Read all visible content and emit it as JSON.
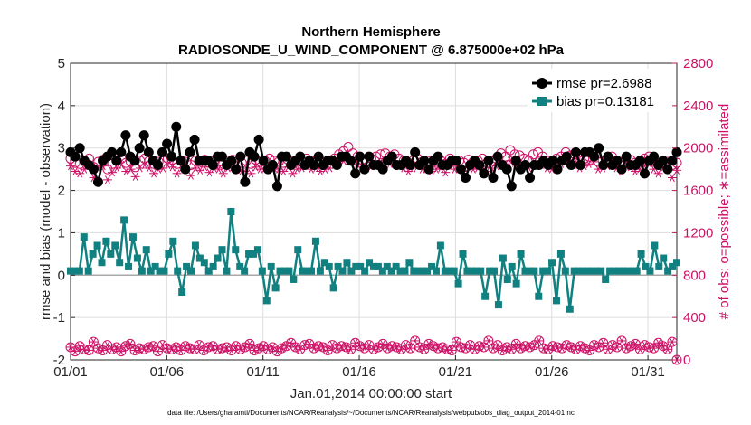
{
  "chart_data": {
    "type": "line",
    "title": "Northern Hemisphere",
    "subtitle": "RADIOSONDE_U_WIND_COMPONENT @ 6.875000e+02 hPa",
    "xlabel": "Jan.01,2014 00:00:00 start",
    "ylabel": "rmse and bias (model - observation)",
    "ylabel_right": "# of obs: o=possible; ∗=assimilated",
    "ylim": [
      -2,
      5
    ],
    "ylim_right": [
      0,
      2800
    ],
    "x_ticks": [
      "01/01",
      "01/06",
      "01/11",
      "01/16",
      "01/21",
      "01/26",
      "01/31"
    ],
    "y_ticks": [
      "-2",
      "-1",
      "0",
      "1",
      "2",
      "3",
      "4",
      "5"
    ],
    "y_ticks_right": [
      "0",
      "400",
      "800",
      "1200",
      "1600",
      "2000",
      "2400",
      "2800"
    ],
    "legend": [
      "rmse pr=2.6988",
      "bias pr=0.13181"
    ],
    "footer": "data file: /Users/gharamti/Documents/NCAR/Reanalysis/~/Documents/NCAR/Reanalysis/webpub/obs_diag_output_2014-01.nc",
    "colors": {
      "rmse": "#000000",
      "bias": "#118080",
      "obs": "#cc1166",
      "zero_line": "#aaaaaa"
    },
    "days": 31.5,
    "rmse": [
      2.9,
      2.8,
      3.0,
      2.7,
      2.6,
      2.5,
      2.2,
      2.7,
      2.8,
      2.9,
      2.7,
      2.9,
      3.3,
      2.8,
      2.7,
      3.0,
      3.3,
      2.9,
      2.7,
      2.6,
      2.9,
      3.1,
      2.8,
      3.5,
      2.7,
      2.5,
      2.9,
      3.2,
      2.7,
      2.7,
      2.7,
      2.6,
      2.8,
      2.8,
      2.6,
      2.7,
      2.5,
      2.8,
      2.2,
      2.9,
      2.8,
      3.2,
      2.7,
      2.5,
      2.6,
      2.1,
      2.8,
      2.8,
      2.6,
      2.7,
      2.8,
      2.6,
      2.7,
      2.6,
      2.8,
      2.6,
      2.7,
      2.7,
      2.6,
      2.8,
      2.8,
      2.7,
      2.4,
      2.8,
      2.5,
      2.8,
      2.6,
      2.6,
      2.5,
      2.7,
      2.8,
      2.6,
      2.6,
      2.7,
      2.6,
      2.9,
      2.6,
      2.7,
      2.5,
      2.7,
      2.8,
      2.6,
      2.6,
      2.7,
      2.7,
      2.5,
      2.3,
      2.6,
      2.7,
      2.6,
      2.4,
      2.7,
      2.3,
      2.8,
      2.6,
      2.5,
      2.1,
      2.7,
      2.5,
      2.6,
      2.3,
      2.6,
      2.6,
      2.7,
      2.6,
      2.7,
      2.5,
      2.7,
      2.8,
      2.6,
      2.9,
      2.6,
      2.9,
      2.9,
      2.8,
      3.0,
      2.6,
      2.8,
      2.6,
      2.7,
      2.5,
      2.8,
      2.6,
      2.6,
      2.7,
      2.4,
      2.7,
      2.8,
      2.6,
      2.7,
      2.5,
      2.7,
      2.9
    ],
    "bias": [
      0.1,
      0.1,
      0.1,
      0.9,
      0.1,
      0.5,
      0.7,
      0.3,
      0.8,
      0.5,
      0.7,
      0.3,
      1.3,
      0.2,
      0.9,
      0.4,
      0.1,
      0.6,
      0.1,
      0.2,
      0.1,
      0.1,
      0.5,
      0.8,
      0.1,
      -0.4,
      0.2,
      0.1,
      0.7,
      0.4,
      0.3,
      0.1,
      0.2,
      0.4,
      0.6,
      0.1,
      1.5,
      0.6,
      0.2,
      0.1,
      0.5,
      0.5,
      0.6,
      0.1,
      -0.6,
      0.2,
      -0.3,
      0.1,
      0.1,
      0.1,
      -0.1,
      0.6,
      0.1,
      0.1,
      0.1,
      0.8,
      0.1,
      0.3,
      0.2,
      -0.3,
      0.2,
      0.1,
      0.3,
      0.1,
      0.2,
      0.2,
      0.1,
      0.3,
      0.2,
      0.2,
      0.1,
      0.2,
      0.1,
      0.2,
      0.1,
      0.1,
      0.3,
      0.1,
      0.1,
      0.1,
      0.1,
      0.2,
      0.1,
      0.7,
      0.1,
      0.1,
      0.1,
      -0.2,
      0.5,
      0.1,
      0.1,
      0.1,
      0.1,
      -0.5,
      0.1,
      0.1,
      -0.7,
      0.4,
      -0.1,
      0.2,
      -0.2,
      0.5,
      0.1,
      0.1,
      0.1,
      -0.5,
      0.1,
      0.1,
      0.3,
      -0.6,
      0.5,
      0.1,
      -0.8,
      0.1,
      0.1,
      0.1,
      0.1,
      0.1,
      0.1,
      0.1,
      -0.1,
      0.1,
      0.1,
      0.1,
      0.1,
      0.1,
      0.1,
      0.1,
      0.5,
      0.2,
      0.1,
      0.7,
      0.2,
      0.4,
      0.1,
      0.2,
      0.3
    ],
    "obs_possible": [
      1900,
      1860,
      1850,
      1880,
      1900,
      1820,
      1870,
      1890,
      1800,
      1850,
      1880,
      1900,
      1860,
      1870,
      1820,
      1880,
      1900,
      1880,
      1850,
      1870,
      1880,
      1900,
      1890,
      1850,
      1880,
      1870,
      1840,
      1880,
      1870,
      1890,
      1860,
      1880,
      1870,
      1850,
      1880,
      1890,
      1870,
      1860,
      1880,
      1850,
      1890,
      1870,
      1880,
      1900,
      1880,
      1870,
      1860,
      1890,
      1850,
      1870,
      1880,
      1900,
      1870,
      1880,
      1860,
      1870,
      1880,
      1900,
      1940,
      1970,
      2010,
      1950,
      1920,
      1890,
      1880,
      1900,
      1920,
      1940,
      1950,
      1920,
      1940,
      1900,
      1880,
      1860,
      1880,
      1900,
      1870,
      1880,
      1860,
      1870,
      1880,
      1850,
      1900,
      1870,
      1880,
      1860,
      1890,
      1870,
      1880,
      1900,
      1860,
      1880,
      1900,
      1950,
      1920,
      1980,
      1940,
      1930,
      1900,
      1880,
      1940,
      1960,
      1920,
      1880,
      1870,
      1900,
      1920,
      1960,
      1930,
      1940,
      1880,
      1900,
      1920,
      1950,
      1870,
      1880,
      1900,
      1920,
      1880,
      1860,
      1900,
      1890,
      1860,
      1870,
      1900,
      1920,
      1870,
      1850,
      1880,
      1870,
      1840,
      1860
    ],
    "obs_assimilated": [
      1830,
      1780,
      1760,
      1800,
      1840,
      1720,
      1800,
      1830,
      1700,
      1770,
      1810,
      1840,
      1780,
      1800,
      1730,
      1810,
      1840,
      1810,
      1760,
      1800,
      1810,
      1840,
      1820,
      1760,
      1810,
      1800,
      1740,
      1810,
      1790,
      1820,
      1770,
      1810,
      1800,
      1760,
      1810,
      1820,
      1800,
      1780,
      1810,
      1760,
      1820,
      1800,
      1810,
      1840,
      1810,
      1800,
      1780,
      1820,
      1760,
      1800,
      1810,
      1840,
      1800,
      1810,
      1780,
      1800,
      1810,
      1840,
      1870,
      1880,
      1880,
      1870,
      1850,
      1820,
      1810,
      1830,
      1850,
      1870,
      1880,
      1850,
      1870,
      1830,
      1810,
      1780,
      1810,
      1830,
      1800,
      1810,
      1780,
      1800,
      1810,
      1770,
      1830,
      1800,
      1810,
      1780,
      1820,
      1800,
      1810,
      1830,
      1780,
      1810,
      1830,
      1870,
      1850,
      1880,
      1860,
      1850,
      1830,
      1810,
      1860,
      1870,
      1850,
      1810,
      1800,
      1830,
      1850,
      1870,
      1860,
      1860,
      1810,
      1830,
      1850,
      1870,
      1800,
      1810,
      1830,
      1850,
      1810,
      1780,
      1830,
      1820,
      1780,
      1800,
      1830,
      1850,
      1800,
      1760,
      1810,
      1800,
      1720,
      1790
    ],
    "obs_low": [
      120,
      80,
      130,
      100,
      90,
      170,
      110,
      90,
      140,
      100,
      120,
      80,
      130,
      150,
      90,
      110,
      100,
      120,
      130,
      80,
      140,
      110,
      100,
      120,
      90,
      130,
      110,
      100,
      140,
      90,
      120,
      130,
      100,
      110,
      120,
      90,
      130,
      100,
      120,
      150,
      90,
      110,
      130,
      100,
      120,
      80,
      110,
      130,
      160,
      120,
      100,
      140,
      150,
      110,
      130,
      120,
      90,
      140,
      110,
      130,
      120,
      100,
      160,
      130,
      110,
      140,
      100,
      120,
      150,
      110,
      130,
      120,
      100,
      140,
      110,
      180,
      120,
      100,
      150,
      130,
      110,
      120,
      100,
      90,
      170,
      120,
      110,
      140,
      100,
      130,
      120,
      180,
      110,
      140,
      90,
      120,
      100,
      150,
      110,
      130,
      120,
      140,
      180,
      110,
      100,
      130,
      120,
      110,
      140,
      120,
      100,
      130,
      110,
      90,
      140,
      120,
      160,
      100,
      140,
      120,
      180,
      110,
      130,
      150,
      100,
      140,
      120,
      110,
      160,
      130,
      100,
      170,
      0
    ]
  }
}
